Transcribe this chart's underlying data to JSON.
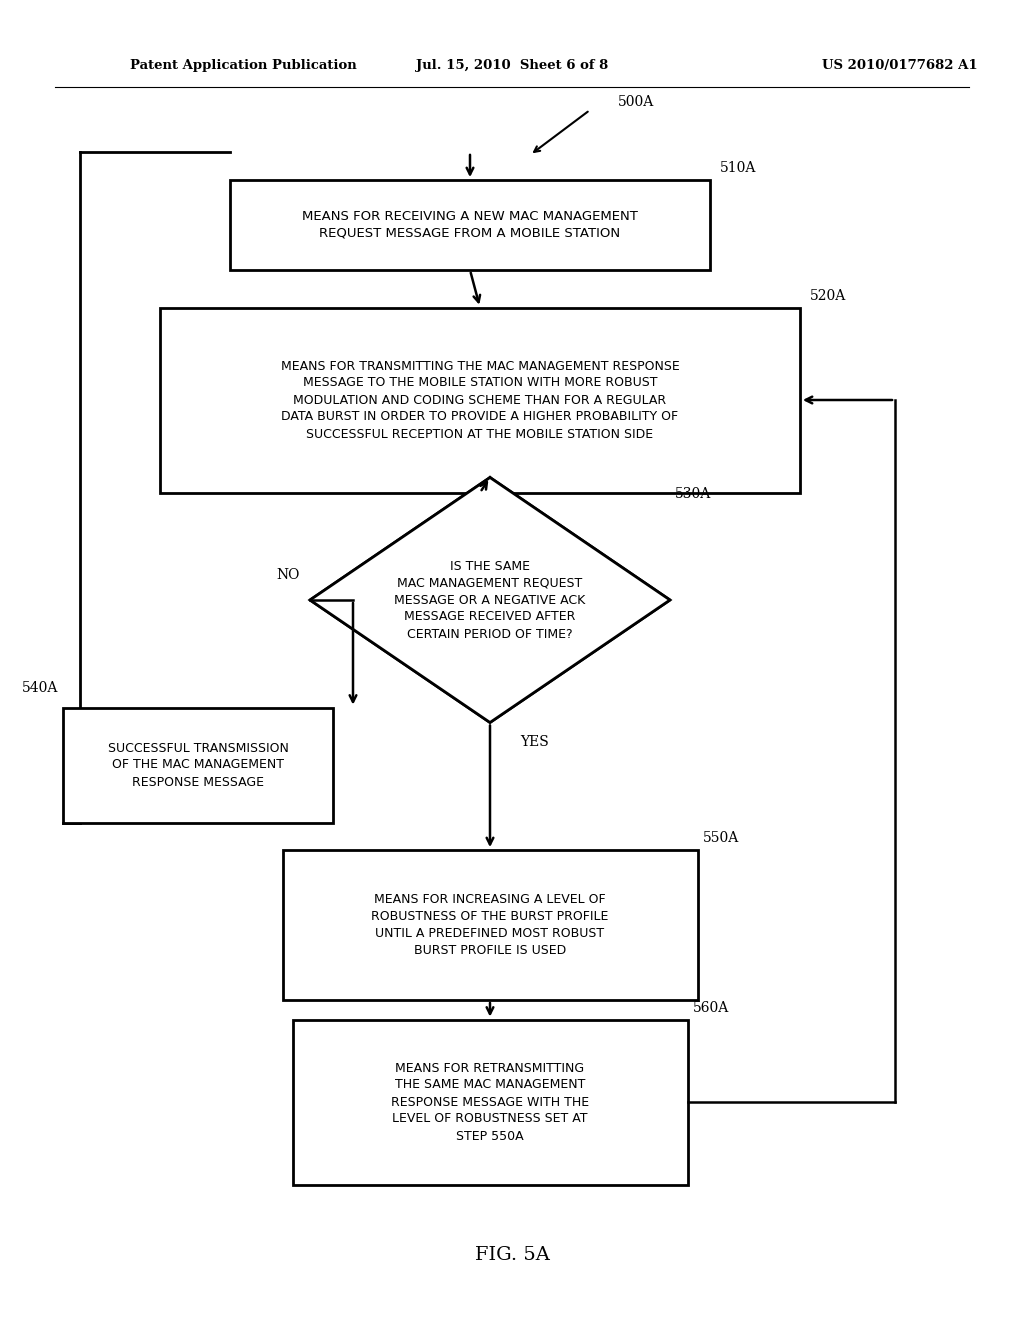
{
  "bg_color": "#ffffff",
  "header_left": "Patent Application Publication",
  "header_mid": "Jul. 15, 2010  Sheet 6 of 8",
  "header_right": "US 2010/0177682 A1",
  "fig_label": "FIG. 5A",
  "label_500A": "500A",
  "label_510A": "510A",
  "label_520A": "520A",
  "label_530A": "530A",
  "label_540A": "540A",
  "label_550A": "550A",
  "label_560A": "560A",
  "box510_text": "MEANS FOR RECEIVING A NEW MAC MANAGEMENT\nREQUEST MESSAGE FROM A MOBILE STATION",
  "box520_text": "MEANS FOR TRANSMITTING THE MAC MANAGEMENT RESPONSE\nMESSAGE TO THE MOBILE STATION WITH MORE ROBUST\nMODULATION AND CODING SCHEME THAN FOR A REGULAR\nDATA BURST IN ORDER TO PROVIDE A HIGHER PROBABILITY OF\nSUCCESSFUL RECEPTION AT THE MOBILE STATION SIDE",
  "diamond530_text": "IS THE SAME\nMAC MANAGEMENT REQUEST\nMESSAGE OR A NEGATIVE ACK\nMESSAGE RECEIVED AFTER\nCERTAIN PERIOD OF TIME?",
  "box540_text": "SUCCESSFUL TRANSMISSION\nOF THE MAC MANAGEMENT\nRESPONSE MESSAGE",
  "box550_text": "MEANS FOR INCREASING A LEVEL OF\nROBUSTNESS OF THE BURST PROFILE\nUNTIL A PREDEFINED MOST ROBUST\nBURST PROFILE IS USED",
  "box560_text": "MEANS FOR RETRANSMITTING\nTHE SAME MAC MANAGEMENT\nRESPONSE MESSAGE WITH THE\nLEVEL OF ROBUSTNESS SET AT\nSTEP 550A",
  "no_label": "NO",
  "yes_label": "YES"
}
